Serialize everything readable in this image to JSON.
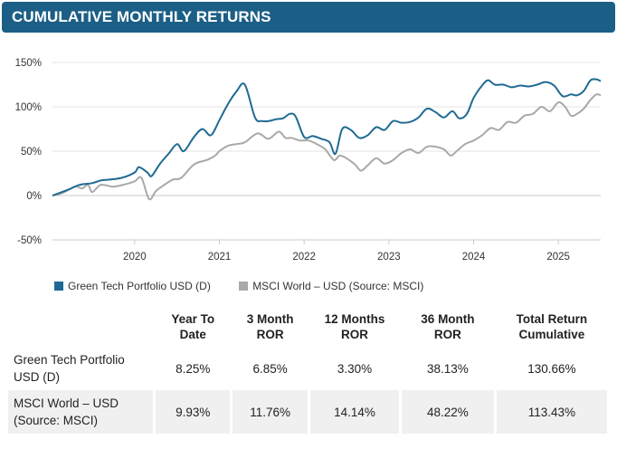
{
  "header": {
    "title": "CUMULATIVE MONTHLY RETURNS"
  },
  "colors": {
    "header_bg": "#1c5f86",
    "portfolio": "#1f6a93",
    "benchmark": "#a9a9a9"
  },
  "chart_data": {
    "type": "line",
    "title": "CUMULATIVE MONTHLY RETURNS",
    "xlabel": "",
    "ylabel": "",
    "ylim": [
      -50,
      150
    ],
    "yticks": [
      "150%",
      "100%",
      "50%",
      "0%",
      "-50%"
    ],
    "ytick_values": [
      150,
      100,
      50,
      0,
      -50
    ],
    "xticks": [
      "2020",
      "2021",
      "2022",
      "2023",
      "2024",
      "2025"
    ],
    "xtick_values": [
      2020,
      2021,
      2022,
      2023,
      2024,
      2025
    ],
    "xlim": [
      2019.03,
      2025.5
    ],
    "grid": "horizontal",
    "legend_position": "bottom-left",
    "series": [
      {
        "name": "Green Tech Portfolio USD (D)",
        "x": [
          2019.03,
          2019.2,
          2019.35,
          2019.5,
          2019.6,
          2019.7,
          2019.85,
          2020.0,
          2020.05,
          2020.15,
          2020.2,
          2020.3,
          2020.4,
          2020.5,
          2020.58,
          2020.7,
          2020.8,
          2020.9,
          2021.0,
          2021.1,
          2021.2,
          2021.3,
          2021.42,
          2021.5,
          2021.58,
          2021.67,
          2021.75,
          2021.83,
          2021.9,
          2022.0,
          2022.1,
          2022.2,
          2022.3,
          2022.37,
          2022.45,
          2022.55,
          2022.65,
          2022.75,
          2022.85,
          2022.95,
          2023.05,
          2023.15,
          2023.25,
          2023.35,
          2023.45,
          2023.55,
          2023.65,
          2023.75,
          2023.83,
          2023.92,
          2024.0,
          2024.1,
          2024.17,
          2024.25,
          2024.35,
          2024.45,
          2024.55,
          2024.65,
          2024.75,
          2024.85,
          2024.95,
          2025.05,
          2025.15,
          2025.22,
          2025.3,
          2025.38,
          2025.45,
          2025.5
        ],
        "values": [
          0,
          6,
          12,
          14,
          17,
          18,
          20,
          26,
          32,
          26,
          22,
          36,
          47,
          58,
          50,
          66,
          75,
          68,
          85,
          103,
          117,
          125,
          88,
          84,
          84,
          86,
          87,
          92,
          89,
          66,
          67,
          64,
          60,
          47,
          75,
          74,
          65,
          68,
          77,
          74,
          84,
          82,
          83,
          88,
          98,
          94,
          88,
          95,
          87,
          92,
          110,
          124,
          130,
          125,
          125,
          122,
          124,
          123,
          125,
          128,
          124,
          112,
          114,
          113,
          118,
          130,
          131,
          129
        ]
      },
      {
        "name": "MSCI World – USD (Source: MSCI)",
        "x": [
          2019.03,
          2019.15,
          2019.3,
          2019.38,
          2019.45,
          2019.5,
          2019.6,
          2019.75,
          2019.9,
          2020.0,
          2020.08,
          2020.17,
          2020.25,
          2020.35,
          2020.45,
          2020.55,
          2020.7,
          2020.85,
          2020.95,
          2021.0,
          2021.1,
          2021.2,
          2021.3,
          2021.45,
          2021.58,
          2021.7,
          2021.78,
          2021.85,
          2021.95,
          2022.05,
          2022.15,
          2022.25,
          2022.35,
          2022.42,
          2022.5,
          2022.6,
          2022.67,
          2022.75,
          2022.85,
          2022.95,
          2023.05,
          2023.15,
          2023.25,
          2023.35,
          2023.45,
          2023.55,
          2023.65,
          2023.73,
          2023.8,
          2023.9,
          2024.0,
          2024.1,
          2024.2,
          2024.3,
          2024.4,
          2024.5,
          2024.6,
          2024.7,
          2024.8,
          2024.9,
          2025.0,
          2025.08,
          2025.15,
          2025.22,
          2025.3,
          2025.38,
          2025.45,
          2025.5
        ],
        "values": [
          0,
          3,
          10,
          8,
          12,
          4,
          12,
          10,
          13,
          16,
          20,
          -4,
          5,
          12,
          18,
          20,
          35,
          40,
          45,
          50,
          56,
          58,
          60,
          70,
          64,
          72,
          65,
          65,
          62,
          62,
          58,
          52,
          40,
          45,
          42,
          35,
          28,
          34,
          42,
          36,
          40,
          48,
          52,
          48,
          55,
          55,
          52,
          45,
          50,
          58,
          62,
          68,
          76,
          74,
          83,
          82,
          90,
          92,
          100,
          95,
          105,
          100,
          90,
          92,
          98,
          108,
          114,
          113
        ]
      }
    ]
  },
  "legend": {
    "portfolio_label": "Green Tech Portfolio USD (D)",
    "benchmark_label": "MSCI World – USD (Source: MSCI)"
  },
  "table": {
    "headers": [
      {
        "line1": "Year To",
        "line2": "Date"
      },
      {
        "line1": "3 Month",
        "line2": "ROR"
      },
      {
        "line1": "12 Months",
        "line2": "ROR"
      },
      {
        "line1": "36 Month",
        "line2": "ROR"
      },
      {
        "line1": "Total Return",
        "line2": "Cumulative"
      }
    ],
    "rows": [
      {
        "name_line1": "Green Tech Portfolio",
        "name_line2": "USD (D)",
        "values": [
          "8.25%",
          "6.85%",
          "3.30%",
          "38.13%",
          "130.66%"
        ]
      },
      {
        "name_line1": "MSCI World – USD",
        "name_line2": "(Source: MSCI)",
        "values": [
          "9.93%",
          "11.76%",
          "14.14%",
          "48.22%",
          "113.43%"
        ]
      }
    ]
  }
}
